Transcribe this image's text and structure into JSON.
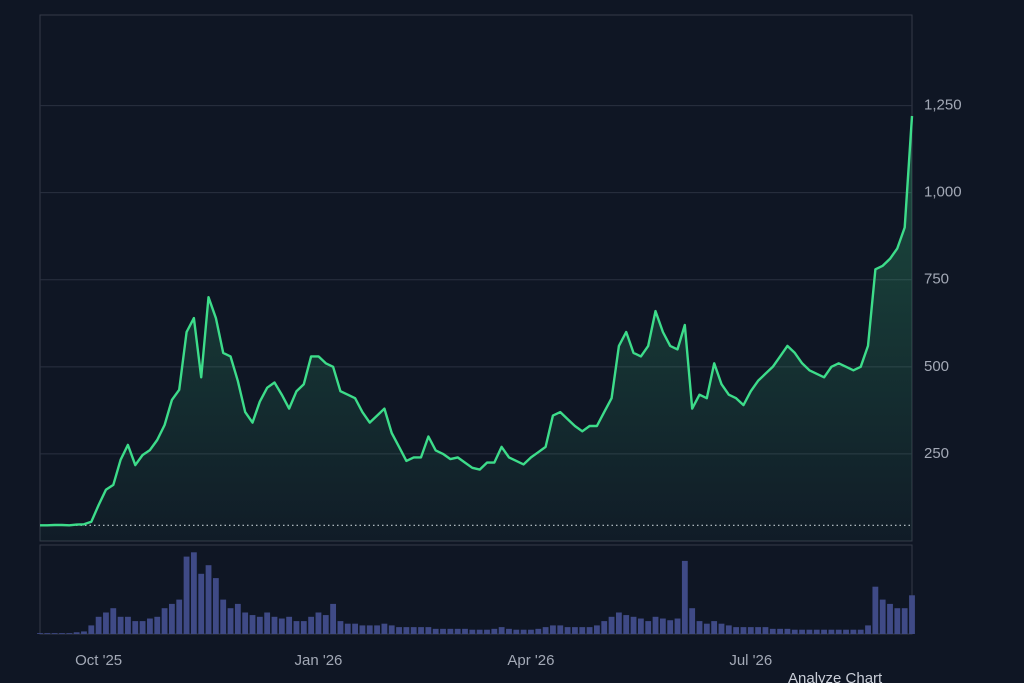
{
  "chart_data": {
    "type": "line",
    "categories": [
      null,
      null,
      null,
      null,
      null,
      null,
      null,
      null,
      "Oct '25",
      null,
      null,
      null,
      null,
      null,
      null,
      null,
      null,
      null,
      null,
      null,
      null,
      null,
      null,
      null,
      null,
      null,
      null,
      null,
      null,
      null,
      null,
      null,
      null,
      null,
      null,
      null,
      null,
      null,
      "Jan '26",
      null,
      null,
      null,
      null,
      null,
      null,
      null,
      null,
      null,
      null,
      null,
      null,
      null,
      null,
      null,
      null,
      null,
      null,
      null,
      null,
      null,
      null,
      null,
      null,
      null,
      null,
      null,
      null,
      "Apr '26",
      null,
      null,
      null,
      null,
      null,
      null,
      null,
      null,
      null,
      null,
      null,
      null,
      null,
      null,
      null,
      null,
      null,
      null,
      null,
      null,
      null,
      null,
      null,
      null,
      null,
      null,
      null,
      null,
      null,
      "Jul '26",
      null,
      null,
      null,
      null,
      null,
      null,
      null,
      null,
      null,
      null,
      null,
      null,
      null,
      null,
      null,
      null,
      null,
      null,
      null,
      null,
      null,
      null
    ],
    "values": [
      45,
      45,
      46,
      46,
      45,
      47,
      48,
      55,
      103,
      147,
      161,
      233,
      276,
      218,
      247,
      261,
      290,
      333,
      405,
      434,
      600,
      640,
      470,
      700,
      640,
      540,
      530,
      460,
      370,
      340,
      400,
      440,
      455,
      420,
      380,
      430,
      450,
      530,
      530,
      510,
      500,
      430,
      420,
      410,
      370,
      340,
      360,
      380,
      310,
      270,
      230,
      240,
      240,
      300,
      260,
      250,
      235,
      240,
      225,
      210,
      205,
      225,
      225,
      270,
      240,
      230,
      220,
      240,
      255,
      270,
      360,
      370,
      350,
      330,
      315,
      330,
      330,
      370,
      410,
      560,
      600,
      540,
      530,
      560,
      660,
      600,
      560,
      550,
      620,
      380,
      420,
      410,
      510,
      450,
      420,
      410,
      390,
      430,
      460,
      480,
      500,
      530,
      560,
      540,
      510,
      490,
      480,
      470,
      500,
      510,
      500,
      490,
      500,
      560,
      780,
      790,
      810,
      840,
      900,
      1220
    ],
    "color": "#3ddc8a",
    "ylim": [
      0,
      1510
    ],
    "yticks": [
      250,
      500,
      750,
      {
        "value": 1000,
        "label": "1,000"
      },
      {
        "value": 1250,
        "label": "1,250"
      }
    ],
    "grid": true,
    "baseline_value": 45,
    "volume": {
      "values": [
        1,
        1,
        1,
        1,
        1,
        2,
        3,
        10,
        20,
        25,
        30,
        20,
        20,
        15,
        15,
        18,
        20,
        30,
        35,
        40,
        90,
        95,
        70,
        80,
        65,
        40,
        30,
        35,
        25,
        22,
        20,
        25,
        20,
        18,
        20,
        15,
        15,
        20,
        25,
        22,
        35,
        15,
        12,
        12,
        10,
        10,
        10,
        12,
        10,
        8,
        8,
        8,
        8,
        8,
        6,
        6,
        6,
        6,
        6,
        5,
        5,
        5,
        6,
        8,
        6,
        5,
        5,
        5,
        6,
        8,
        10,
        10,
        8,
        8,
        8,
        8,
        10,
        15,
        20,
        25,
        22,
        20,
        18,
        15,
        20,
        18,
        16,
        18,
        85,
        30,
        15,
        12,
        15,
        12,
        10,
        8,
        8,
        8,
        8,
        8,
        6,
        6,
        6,
        5,
        5,
        5,
        5,
        5,
        5,
        5,
        5,
        5,
        5,
        10,
        55,
        40,
        35,
        30,
        30,
        45
      ],
      "color": "#3f4a86",
      "ylim": [
        0,
        100
      ]
    },
    "button": "Analyze Chart"
  }
}
